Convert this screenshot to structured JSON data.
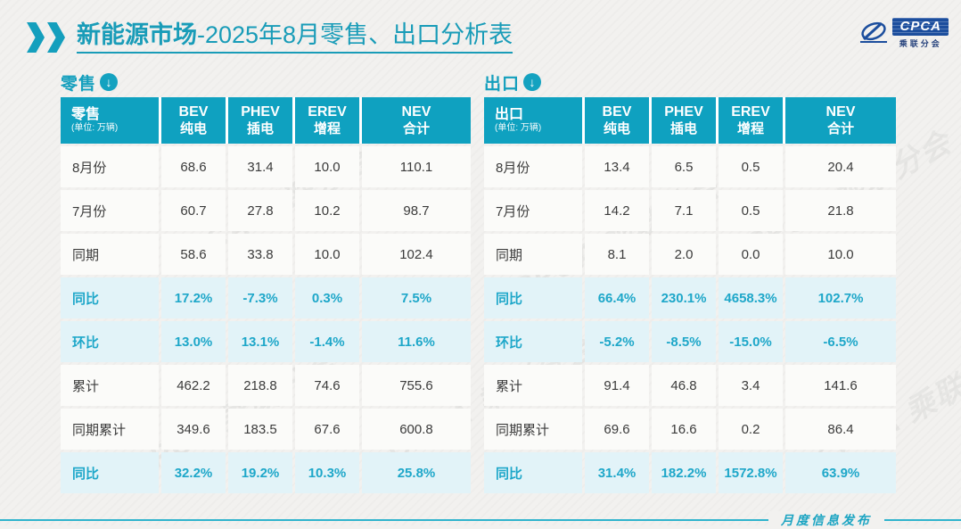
{
  "page": {
    "title_bold": "新能源市场",
    "title_rest": "-2025年8月零售、出口分析表",
    "footer": "月度信息发布",
    "watermark": "CPCA 乘联分会"
  },
  "logo": {
    "name": "CPCA",
    "subtext": "乘联分会"
  },
  "colors": {
    "accent": "#14a0be",
    "header_bg": "#0fa1c0",
    "highlight_bg": "#e2f3f8",
    "highlight_text": "#1ea7c9",
    "logo_blue": "#1c4e9d"
  },
  "icons": {
    "title_chevrons": "double-chevron-right-icon",
    "section_arrow": "down-arrow-circle-icon",
    "arrow_glyph": "↓"
  },
  "tables": [
    {
      "section_label": "零售",
      "header_label": "零售",
      "unit": "(单位: 万辆)",
      "columns": [
        {
          "en": "BEV",
          "zh": "纯电"
        },
        {
          "en": "PHEV",
          "zh": "插电"
        },
        {
          "en": "EREV",
          "zh": "增程"
        },
        {
          "en": "NEV",
          "zh": "合计"
        }
      ],
      "rows": [
        {
          "label": "8月份",
          "highlight": false,
          "values": [
            "68.6",
            "31.4",
            "10.0",
            "110.1"
          ]
        },
        {
          "label": "7月份",
          "highlight": false,
          "values": [
            "60.7",
            "27.8",
            "10.2",
            "98.7"
          ]
        },
        {
          "label": "同期",
          "highlight": false,
          "values": [
            "58.6",
            "33.8",
            "10.0",
            "102.4"
          ]
        },
        {
          "label": "同比",
          "highlight": true,
          "values": [
            "17.2%",
            "-7.3%",
            "0.3%",
            "7.5%"
          ]
        },
        {
          "label": "环比",
          "highlight": true,
          "values": [
            "13.0%",
            "13.1%",
            "-1.4%",
            "11.6%"
          ]
        },
        {
          "label": "累计",
          "highlight": false,
          "values": [
            "462.2",
            "218.8",
            "74.6",
            "755.6"
          ]
        },
        {
          "label": "同期累计",
          "highlight": false,
          "values": [
            "349.6",
            "183.5",
            "67.6",
            "600.8"
          ]
        },
        {
          "label": "同比",
          "highlight": true,
          "values": [
            "32.2%",
            "19.2%",
            "10.3%",
            "25.8%"
          ]
        }
      ]
    },
    {
      "section_label": "出口",
      "header_label": "出口",
      "unit": "(单位: 万辆)",
      "columns": [
        {
          "en": "BEV",
          "zh": "纯电"
        },
        {
          "en": "PHEV",
          "zh": "插电"
        },
        {
          "en": "EREV",
          "zh": "增程"
        },
        {
          "en": "NEV",
          "zh": "合计"
        }
      ],
      "rows": [
        {
          "label": "8月份",
          "highlight": false,
          "values": [
            "13.4",
            "6.5",
            "0.5",
            "20.4"
          ]
        },
        {
          "label": "7月份",
          "highlight": false,
          "values": [
            "14.2",
            "7.1",
            "0.5",
            "21.8"
          ]
        },
        {
          "label": "同期",
          "highlight": false,
          "values": [
            "8.1",
            "2.0",
            "0.0",
            "10.0"
          ]
        },
        {
          "label": "同比",
          "highlight": true,
          "values": [
            "66.4%",
            "230.1%",
            "4658.3%",
            "102.7%"
          ]
        },
        {
          "label": "环比",
          "highlight": true,
          "values": [
            "-5.2%",
            "-8.5%",
            "-15.0%",
            "-6.5%"
          ]
        },
        {
          "label": "累计",
          "highlight": false,
          "values": [
            "91.4",
            "46.8",
            "3.4",
            "141.6"
          ]
        },
        {
          "label": "同期累计",
          "highlight": false,
          "values": [
            "69.6",
            "16.6",
            "0.2",
            "86.4"
          ]
        },
        {
          "label": "同比",
          "highlight": true,
          "values": [
            "31.4%",
            "182.2%",
            "1572.8%",
            "63.9%"
          ]
        }
      ]
    }
  ]
}
